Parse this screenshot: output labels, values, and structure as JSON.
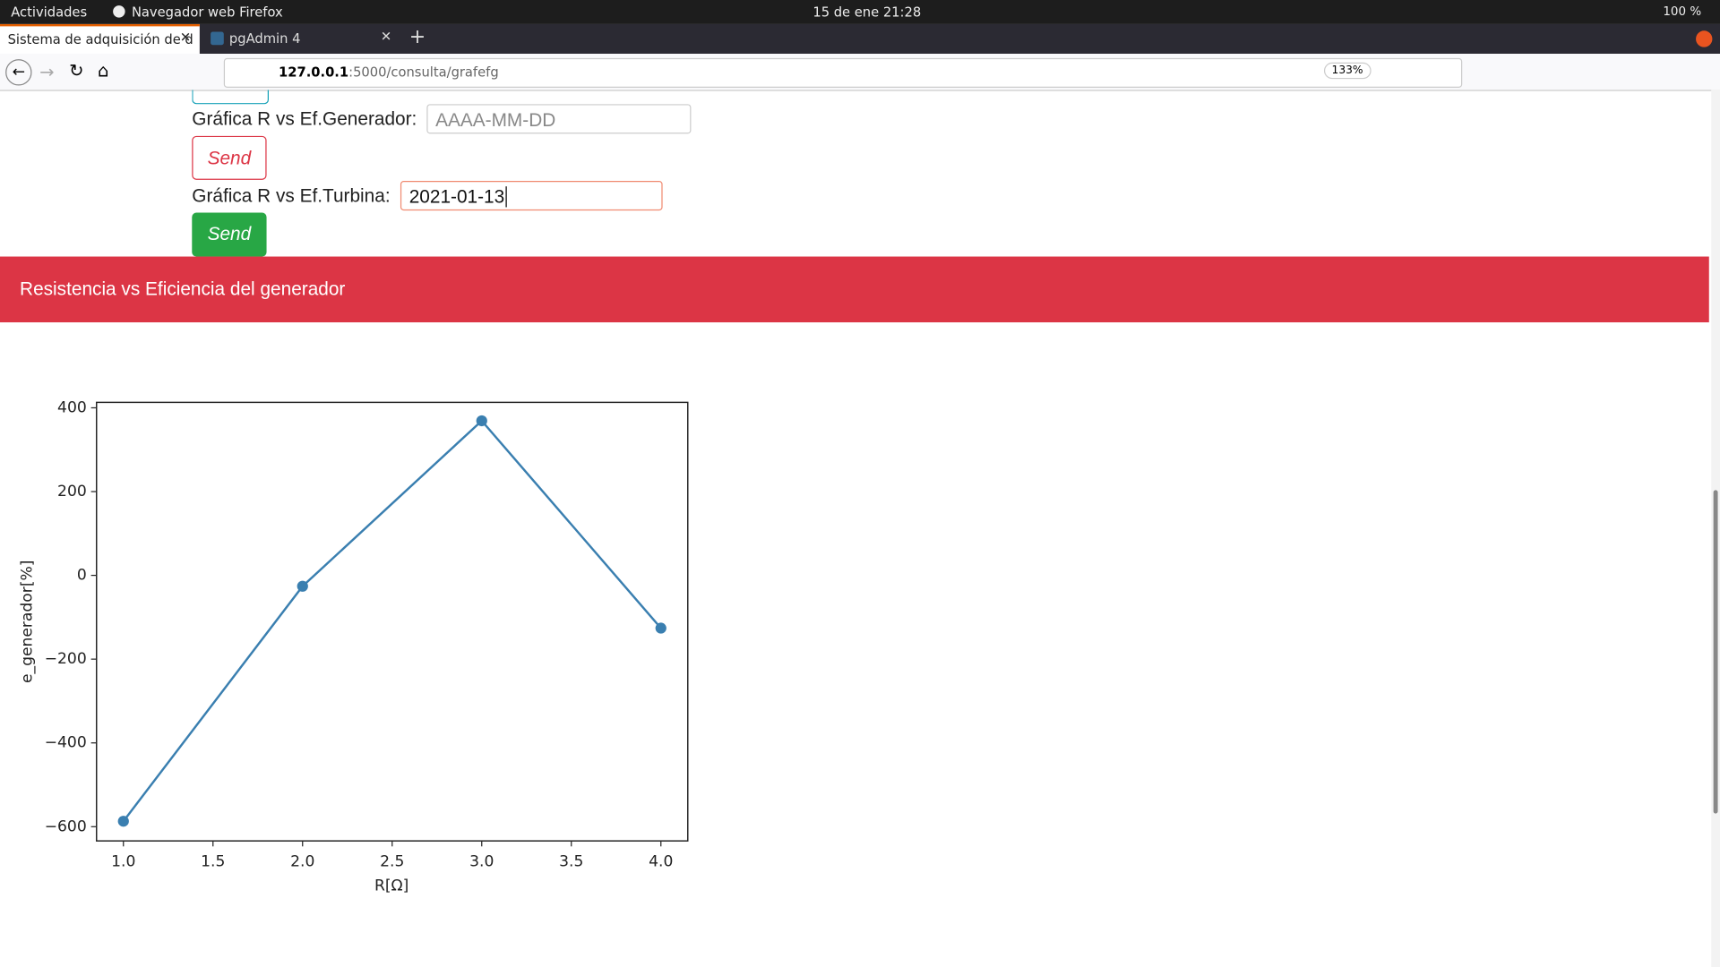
{
  "topbar": {
    "activities": "Actividades",
    "app": "Navegador web Firefox",
    "clock": "15 de ene  21:28",
    "battery": "100 %"
  },
  "tabs": [
    "Sistema de adquisición de d",
    "pgAdmin 4"
  ],
  "url": {
    "host": "127.0.0.1",
    "rest": ":5000/consulta/grafefg",
    "zoom": "133%"
  },
  "form": {
    "gen_label": "Gráfica R vs Ef.Generador:",
    "gen_placeholder": "AAAA-MM-DD",
    "send1": "Send",
    "tur_label": "Gráfica R vs Ef.Turbina:",
    "tur_value": "2021-01-13",
    "send2": "Send"
  },
  "banner": "Resistencia vs Eficiencia del generador",
  "chart_data": {
    "type": "line",
    "x": [
      1,
      2,
      3,
      4
    ],
    "values": [
      -587,
      -26,
      369,
      -126
    ],
    "color": "#3a7fb0",
    "xlabel": "R[Ω]",
    "ylabel": "e_generador[%]",
    "xlim": [
      0.85,
      4.15
    ],
    "ylim": [
      -634,
      413
    ],
    "xticks": [
      {
        "value": 1,
        "label": "1.0"
      },
      {
        "value": 1.5,
        "label": "1.5"
      },
      {
        "value": 2,
        "label": "2.0"
      },
      {
        "value": 2.5,
        "label": "2.5"
      },
      {
        "value": 3,
        "label": "3.0"
      },
      {
        "value": 3.5,
        "label": "3.5"
      },
      {
        "value": 4,
        "label": "4.0"
      }
    ],
    "yticks": [
      {
        "value": -600,
        "label": "−600"
      },
      {
        "value": -400,
        "label": "−400"
      },
      {
        "value": -200,
        "label": "−200"
      },
      0,
      200,
      400
    ]
  }
}
